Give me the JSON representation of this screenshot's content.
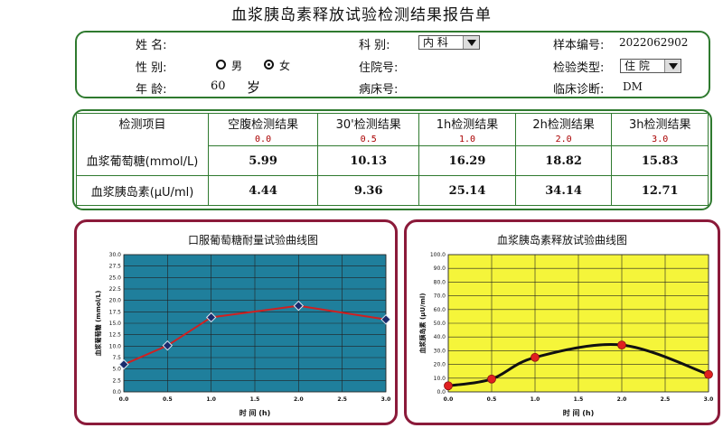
{
  "title": "血浆胰岛素释放试验检测结果报告单",
  "patient": {
    "name_label": "姓    名:",
    "name_value": "",
    "gender_label": "性    别:",
    "gender_male": "男",
    "gender_female": "女",
    "gender_selected": "女",
    "age_label": "年    龄:",
    "age_value": "60",
    "age_unit": "岁",
    "dept_label": "科    别:",
    "dept_value": "内 科",
    "inpatient_label": "住院号:",
    "inpatient_value": "",
    "bed_label": "病床号:",
    "bed_value": "",
    "sample_label": "样本编号:",
    "sample_value": "2022062902",
    "exam_type_label": "检验类型:",
    "exam_type_value": "住 院",
    "diagnosis_label": "临床诊断:",
    "diagnosis_value": "DM"
  },
  "table": {
    "headers": [
      "检测项目",
      "空腹检测结果",
      "30'检测结果",
      "1h检测结果",
      "2h检测结果",
      "3h检测结果"
    ],
    "timepoints": [
      "0.0",
      "0.5",
      "1.0",
      "2.0",
      "3.0"
    ],
    "rows": [
      {
        "name": "血浆葡萄糖(mmol/L)",
        "values": [
          "5.99",
          "10.13",
          "16.29",
          "18.82",
          "15.83"
        ]
      },
      {
        "name": "血浆胰岛素(μU/ml)",
        "values": [
          "4.44",
          "9.36",
          "25.14",
          "34.14",
          "12.71"
        ]
      }
    ]
  },
  "chart_data": [
    {
      "type": "line",
      "title": "口服葡萄糖耐量试验曲线图",
      "xlabel": "时  间 (h)",
      "ylabel": "血浆葡萄糖 (mmol/L)",
      "xlim": [
        0,
        3
      ],
      "ylim": [
        0,
        30
      ],
      "xticks": [
        "0.0",
        "0.5",
        "1.0",
        "1.5",
        "2.0",
        "2.5",
        "3.0"
      ],
      "yticks": [
        "0.0",
        "2.5",
        "5.0",
        "7.5",
        "10.0",
        "12.5",
        "15.0",
        "17.5",
        "20.0",
        "22.5",
        "25.0",
        "27.5",
        "30.0"
      ],
      "grid": true,
      "background": "#1f7f9c",
      "line_color": "#d02020",
      "marker_color": "#1a2a6c",
      "x": [
        0,
        0.5,
        1,
        2,
        3
      ],
      "y": [
        5.99,
        10.13,
        16.29,
        18.82,
        15.83
      ]
    },
    {
      "type": "line",
      "title": "血浆胰岛素释放试验曲线图",
      "xlabel": "时  间 (h)",
      "ylabel": "血浆胰岛素 (μU/ml)",
      "xlim": [
        0,
        3
      ],
      "ylim": [
        0,
        100
      ],
      "xticks": [
        "0.0",
        "0.5",
        "1.0",
        "1.5",
        "2.0",
        "2.5",
        "3.0"
      ],
      "yticks": [
        "0.0",
        "10.0",
        "20.0",
        "30.0",
        "40.0",
        "50.0",
        "60.0",
        "70.0",
        "80.0",
        "90.0",
        "100.0"
      ],
      "grid": true,
      "background": "#f5f53a",
      "line_color": "#111111",
      "marker_color": "#e02020",
      "x": [
        0,
        0.5,
        1,
        2,
        3
      ],
      "y": [
        4.44,
        9.36,
        25.14,
        34.14,
        12.71
      ]
    }
  ]
}
